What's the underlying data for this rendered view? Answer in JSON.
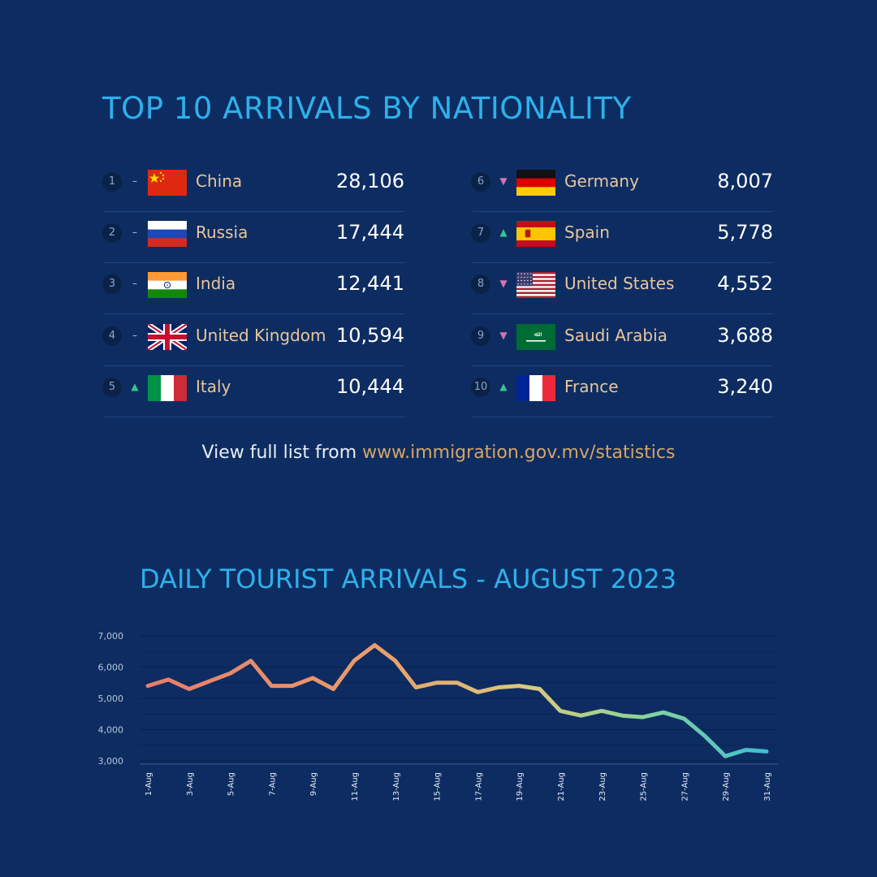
{
  "top10": {
    "title": "TOP 10 ARRIVALS BY NATIONALITY",
    "rows": [
      {
        "rank": "1",
        "trend": "same",
        "country": "China",
        "flag": "china",
        "value": "28,106"
      },
      {
        "rank": "2",
        "trend": "same",
        "country": "Russia",
        "flag": "russia",
        "value": "17,444"
      },
      {
        "rank": "3",
        "trend": "same",
        "country": "India",
        "flag": "india",
        "value": "12,441"
      },
      {
        "rank": "4",
        "trend": "same",
        "country": "United Kingdom",
        "flag": "uk",
        "value": "10,594"
      },
      {
        "rank": "5",
        "trend": "up",
        "country": "Italy",
        "flag": "italy",
        "value": "10,444"
      },
      {
        "rank": "6",
        "trend": "down",
        "country": "Germany",
        "flag": "germany",
        "value": "8,007"
      },
      {
        "rank": "7",
        "trend": "up",
        "country": "Spain",
        "flag": "spain",
        "value": "5,778"
      },
      {
        "rank": "8",
        "trend": "down",
        "country": "United States",
        "flag": "usa",
        "value": "4,552"
      },
      {
        "rank": "9",
        "trend": "down",
        "country": "Saudi Arabia",
        "flag": "saudi",
        "value": "3,688"
      },
      {
        "rank": "10",
        "trend": "up",
        "country": "France",
        "flag": "france",
        "value": "3,240"
      }
    ]
  },
  "footer": {
    "prefix": "View full list from ",
    "link": "www.immigration.gov.mv/statistics"
  },
  "chart_data": {
    "type": "line",
    "title": "DAILY TOURIST ARRIVALS - AUGUST 2023",
    "xlabel": "",
    "ylabel": "",
    "ylim": [
      3000,
      7000
    ],
    "yticks": [
      "7,000",
      "6,000",
      "5,000",
      "4,000",
      "3,000"
    ],
    "ytick_values": [
      7000,
      6000,
      5000,
      4000,
      3000
    ],
    "x": [
      "1-Aug",
      "2-Aug",
      "3-Aug",
      "4-Aug",
      "5-Aug",
      "6-Aug",
      "7-Aug",
      "8-Aug",
      "9-Aug",
      "10-Aug",
      "11-Aug",
      "12-Aug",
      "13-Aug",
      "14-Aug",
      "15-Aug",
      "16-Aug",
      "17-Aug",
      "18-Aug",
      "19-Aug",
      "20-Aug",
      "21-Aug",
      "22-Aug",
      "23-Aug",
      "24-Aug",
      "25-Aug",
      "26-Aug",
      "27-Aug",
      "28-Aug",
      "29-Aug",
      "30-Aug",
      "31-Aug"
    ],
    "xtick_labels": [
      "1-Aug",
      "3-Aug",
      "5-Aug",
      "7-Aug",
      "9-Aug",
      "11-Aug",
      "13-Aug",
      "15-Aug",
      "17-Aug",
      "19-Aug",
      "21-Aug",
      "23-Aug",
      "25-Aug",
      "27-Aug",
      "29-Aug",
      "31-Aug"
    ],
    "values": [
      5400,
      5600,
      5300,
      5550,
      5800,
      6200,
      5400,
      5400,
      5650,
      5300,
      6200,
      6700,
      6200,
      5350,
      5500,
      5500,
      5200,
      5350,
      5400,
      5300,
      4600,
      4450,
      4600,
      4450,
      4400,
      4550,
      4350,
      3800,
      3150,
      3350,
      3300
    ],
    "grid": true,
    "colors": [
      "#e97d6a",
      "#e99b6a",
      "#dcc97e",
      "#8ad39c",
      "#3fbfd0"
    ]
  }
}
